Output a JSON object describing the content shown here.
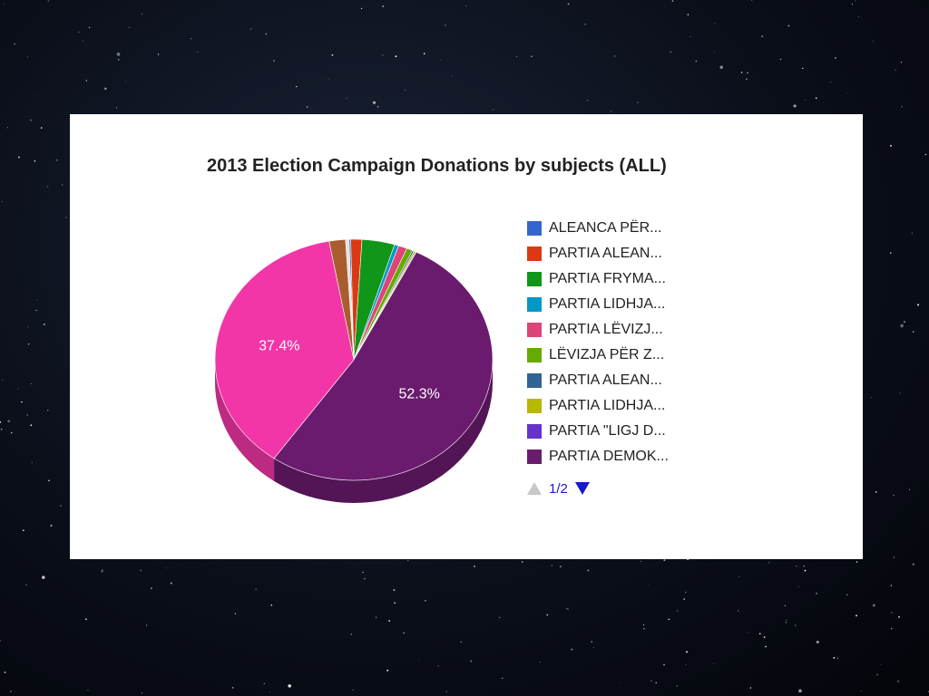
{
  "chart_data": {
    "type": "pie",
    "title": "2013 Election Campaign Donations by subjects (ALL)",
    "slices": [
      {
        "label": "ALEANCA PËR...",
        "value": 0.2,
        "color": "#3366cc"
      },
      {
        "label": "PARTIA ALEAN...",
        "value": 1.3,
        "color": "#dc3912"
      },
      {
        "label": "PARTIA FRYMA...",
        "value": 3.8,
        "color": "#109618"
      },
      {
        "label": "PARTIA LIDHJA...",
        "value": 0.5,
        "color": "#0099c6"
      },
      {
        "label": "PARTIA LËVIZJ...",
        "value": 1.0,
        "color": "#dd4477"
      },
      {
        "label": "LËVIZJA PËR Z...",
        "value": 0.7,
        "color": "#66aa00"
      },
      {
        "label": "PARTIA ALEAN...",
        "value": 0.2,
        "color": "#316395"
      },
      {
        "label": "PARTIA LIDHJA...",
        "value": 0.2,
        "color": "#b8b800"
      },
      {
        "label": "PARTIA \"LIGJ D...",
        "value": 0.1,
        "color": "#6633cc"
      },
      {
        "label": "PARTIA DEMOK...",
        "value": 52.3,
        "color": "#6a1b6e",
        "data_label": "52.3%"
      },
      {
        "label": "",
        "value": 37.4,
        "color": "#f236a7",
        "data_label": "37.4%"
      },
      {
        "label": "",
        "value": 1.9,
        "color": "#a95d2f"
      },
      {
        "label": "",
        "value": 0.4,
        "color": "#e8e0d8"
      }
    ],
    "legend_position": "right",
    "three_d": true
  },
  "legend": {
    "items": [
      {
        "label": "ALEANCA PËR...",
        "color": "#3366cc"
      },
      {
        "label": "PARTIA ALEAN...",
        "color": "#dc3912"
      },
      {
        "label": "PARTIA FRYMA...",
        "color": "#109618"
      },
      {
        "label": "PARTIA LIDHJA...",
        "color": "#0099c6"
      },
      {
        "label": "PARTIA LËVIZJ...",
        "color": "#dd4477"
      },
      {
        "label": "LËVIZJA PËR Z...",
        "color": "#66aa00"
      },
      {
        "label": "PARTIA ALEAN...",
        "color": "#316395"
      },
      {
        "label": "PARTIA LIDHJA...",
        "color": "#b8b800"
      },
      {
        "label": "PARTIA \"LIGJ D...",
        "color": "#6633cc"
      },
      {
        "label": "PARTIA DEMOK...",
        "color": "#6a1b6e"
      }
    ],
    "pager_text": "1/2"
  }
}
